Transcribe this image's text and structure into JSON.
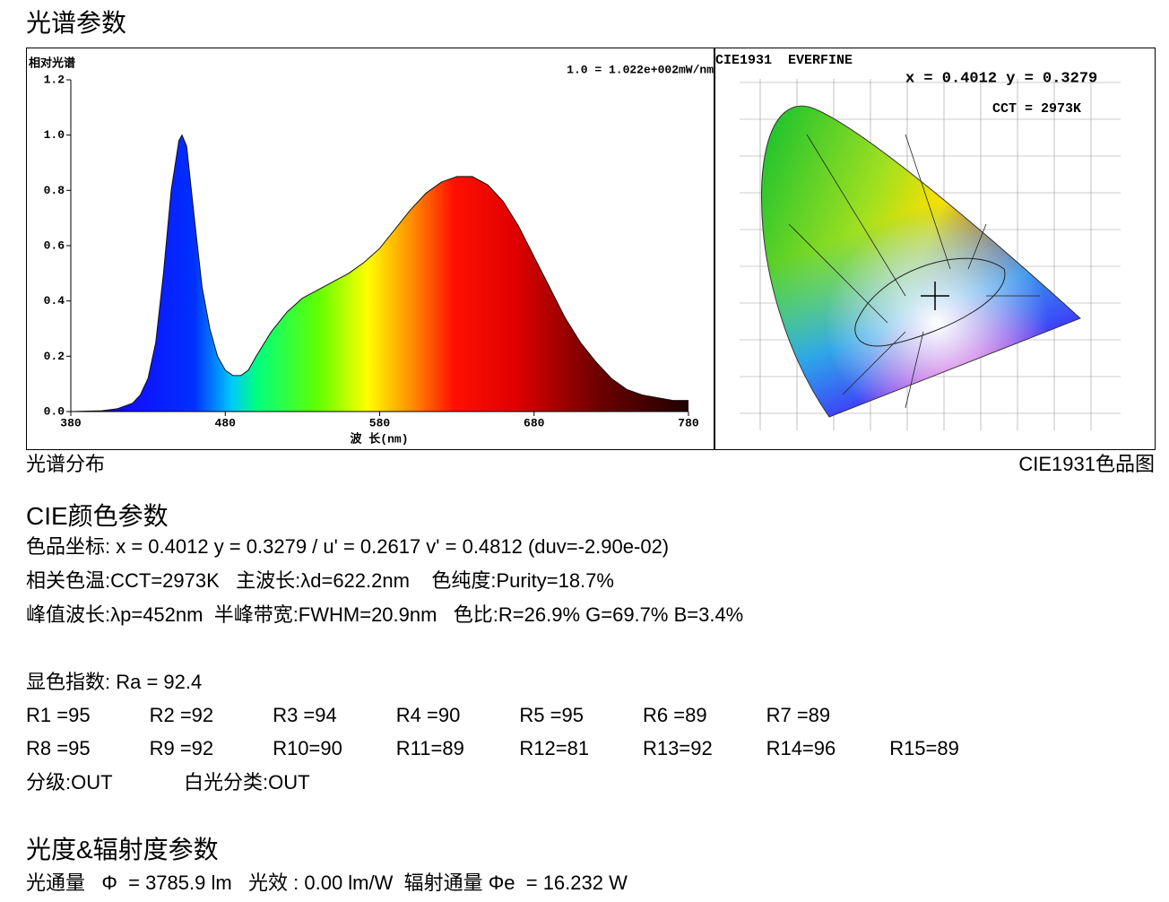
{
  "header": {
    "title": "光谱参数"
  },
  "chart_data": {
    "type": "area",
    "title": "相对光谱",
    "note": "1.0 = 1.022e+002mW/nm",
    "x_label": "波 长(nm)",
    "x": [
      380,
      400,
      410,
      420,
      425,
      430,
      435,
      440,
      445,
      450,
      452,
      455,
      460,
      465,
      470,
      475,
      480,
      485,
      490,
      495,
      500,
      510,
      520,
      530,
      540,
      550,
      560,
      570,
      580,
      590,
      600,
      610,
      620,
      630,
      640,
      650,
      660,
      670,
      680,
      690,
      700,
      710,
      720,
      730,
      740,
      750,
      760,
      770,
      780
    ],
    "values": [
      0,
      0.003,
      0.01,
      0.03,
      0.06,
      0.12,
      0.25,
      0.5,
      0.8,
      0.98,
      1.0,
      0.96,
      0.7,
      0.45,
      0.3,
      0.2,
      0.15,
      0.13,
      0.13,
      0.15,
      0.2,
      0.29,
      0.36,
      0.41,
      0.44,
      0.47,
      0.5,
      0.54,
      0.59,
      0.66,
      0.73,
      0.79,
      0.83,
      0.85,
      0.85,
      0.82,
      0.76,
      0.67,
      0.56,
      0.45,
      0.34,
      0.25,
      0.18,
      0.12,
      0.08,
      0.06,
      0.05,
      0.04,
      0.04
    ],
    "xlim": [
      380,
      780
    ],
    "xticks": [
      380,
      480,
      580,
      680,
      780
    ],
    "ylim": [
      0,
      1.2
    ],
    "yticks": [
      {
        "value": 0,
        "label": "0.0"
      },
      {
        "value": 0.2,
        "label": "0.2"
      },
      {
        "value": 0.4,
        "label": "0.4"
      },
      {
        "value": 0.6,
        "label": "0.6"
      },
      {
        "value": 0.8,
        "label": "0.8"
      },
      {
        "value": 1.0,
        "label": "1.0"
      },
      {
        "value": 1.2,
        "label": "1.2"
      }
    ]
  },
  "cie_diagram": {
    "title": "CIE1931  EVERFINE",
    "coords": "x = 0.4012 y = 0.3279",
    "cct": "CCT = 2973K"
  },
  "captions": {
    "spectrum": "光谱分布",
    "cie": "CIE1931色品图"
  },
  "cie_section": {
    "title": "CIE颜色参数",
    "lines": [
      "色品坐标: x = 0.4012 y = 0.3279 / u' = 0.2617 v' = 0.4812 (duv=-2.90e-02)",
      "相关色温:CCT=2973K   主波长:λd=622.2nm    色纯度:Purity=18.7%",
      "峰值波长:λp=452nm  半峰带宽:FWHM=20.9nm   色比:R=26.9% G=69.7% B=3.4%"
    ]
  },
  "rendering": {
    "ra": "显色指数: Ra = 92.4",
    "rows": [
      [
        "R1 =95",
        "R2 =92",
        "R3 =94",
        "R4 =90",
        "R5 =95",
        "R6 =89",
        "R7 =89"
      ],
      [
        "R8 =95",
        "R9 =92",
        "R10=90",
        "R11=89",
        "R12=81",
        "R13=92",
        "R14=96",
        "R15=89"
      ]
    ],
    "grade": "分级:OUT",
    "white_class": "白光分类:OUT"
  },
  "photometric": {
    "title": "光度&辐射度参数",
    "line": "光通量   Φ  = 3785.9 lm   光效 : 0.00 lm/W  辐射通量 Φe  = 16.232 W"
  }
}
